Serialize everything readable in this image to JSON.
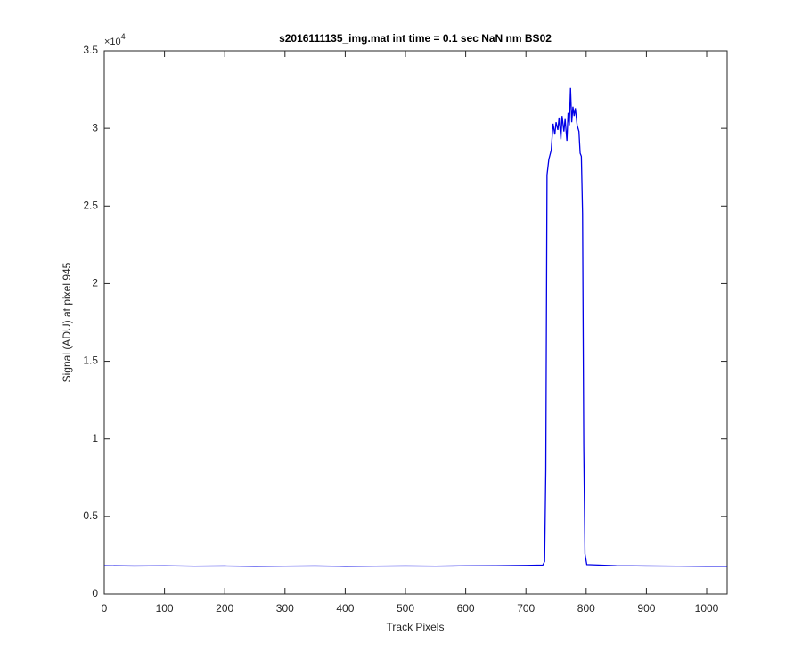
{
  "chart_data": {
    "type": "line",
    "title": "s2016111135_img.mat int time = 0.1 sec  NaN nm BS02",
    "x_label": "Track Pixels",
    "y_label": "Signal (ADU) at pixel 945",
    "y_multiplier": {
      "base": "×10",
      "exponent": "4"
    },
    "xlim": [
      0,
      1034
    ],
    "xticks": [
      0,
      100,
      200,
      300,
      400,
      500,
      600,
      700,
      800,
      900,
      1000
    ],
    "ylim": [
      0,
      35000
    ],
    "yticks": [
      0,
      {
        "value": 5000,
        "label": "0.5"
      },
      {
        "value": 10000,
        "label": "1"
      },
      {
        "value": 15000,
        "label": "1.5"
      },
      {
        "value": 20000,
        "label": "2"
      },
      {
        "value": 25000,
        "label": "2.5"
      },
      {
        "value": 30000,
        "label": "3"
      },
      {
        "value": 35000,
        "label": "3.5"
      }
    ],
    "grid": false,
    "series": [
      {
        "name": "Signal",
        "color": "#0000e6",
        "x": [
          0,
          50,
          100,
          150,
          200,
          250,
          300,
          350,
          400,
          450,
          500,
          550,
          600,
          650,
          700,
          728,
          731,
          733,
          735,
          738,
          740,
          742,
          745,
          748,
          750,
          753,
          755,
          758,
          760,
          763,
          765,
          768,
          770,
          772,
          774,
          776,
          778,
          780,
          782,
          785,
          788,
          790,
          792,
          794,
          796,
          798,
          801,
          850,
          900,
          950,
          1000,
          1034
        ],
        "values": [
          1830,
          1810,
          1820,
          1800,
          1810,
          1790,
          1800,
          1810,
          1790,
          1800,
          1810,
          1800,
          1820,
          1830,
          1850,
          1870,
          2100,
          8000,
          27000,
          28000,
          28300,
          28600,
          30300,
          29600,
          30400,
          29900,
          30700,
          29300,
          30800,
          29800,
          30600,
          29200,
          31000,
          30200,
          32600,
          30400,
          31400,
          30800,
          31300,
          30200,
          29800,
          28400,
          28200,
          24500,
          9500,
          2600,
          1900,
          1830,
          1810,
          1800,
          1790,
          1790
        ]
      }
    ]
  }
}
